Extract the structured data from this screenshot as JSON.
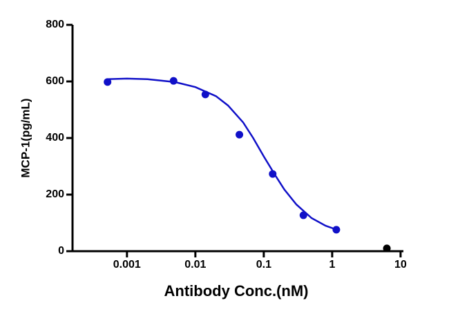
{
  "chart_data": {
    "type": "scatter",
    "y_label": "MCP-1(pg/mL)",
    "x_label": "Antibody Conc.(nM)",
    "x_scale": "log",
    "xlim": [
      0.00016,
      11
    ],
    "xticks": [
      0.001,
      0.01,
      0.1,
      1,
      10
    ],
    "ylim": [
      0,
      800
    ],
    "yticks": [
      0,
      200,
      400,
      600,
      800
    ],
    "series": [
      {
        "mode": "line",
        "color": "#1010c8",
        "x": [
          0.0005,
          0.001,
          0.002,
          0.005,
          0.01,
          0.02,
          0.03,
          0.05,
          0.07,
          0.1,
          0.15,
          0.2,
          0.3,
          0.5,
          0.8,
          1.2
        ],
        "values": [
          608,
          610,
          608,
          598,
          580,
          548,
          515,
          455,
          400,
          335,
          265,
          218,
          165,
          117,
          90,
          75
        ]
      },
      {
        "mode": "points",
        "color": "#1010c8",
        "x": [
          0.00052,
          0.0048,
          0.014,
          0.044,
          0.135,
          0.38,
          1.15
        ],
        "values": [
          598,
          602,
          554,
          412,
          273,
          127,
          76
        ]
      },
      {
        "mode": "points",
        "color": "#000000",
        "x": [
          6.3
        ],
        "values": [
          10
        ]
      }
    ]
  }
}
